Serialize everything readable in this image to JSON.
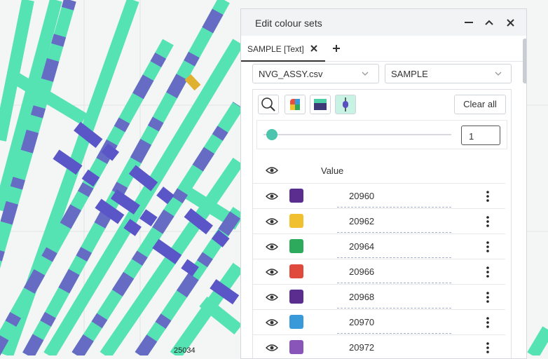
{
  "background": {
    "label": "25034"
  },
  "panel": {
    "title": "Edit colour sets",
    "tab": "SAMPLE [Text]",
    "file_select": "NVG_ASSY.csv",
    "field_select": "SAMPLE",
    "clear_button": "Clear all",
    "size_input": "1",
    "table": {
      "header": "Value",
      "rows": [
        {
          "value": "20960",
          "color": "#5b2d8e"
        },
        {
          "value": "20962",
          "color": "#f0c030"
        },
        {
          "value": "20964",
          "color": "#2eaa5c"
        },
        {
          "value": "20966",
          "color": "#e04a3c"
        },
        {
          "value": "20968",
          "color": "#5b2d8e"
        },
        {
          "value": "20970",
          "color": "#3a9ad9"
        },
        {
          "value": "20972",
          "color": "#8a55b8"
        }
      ]
    }
  }
}
